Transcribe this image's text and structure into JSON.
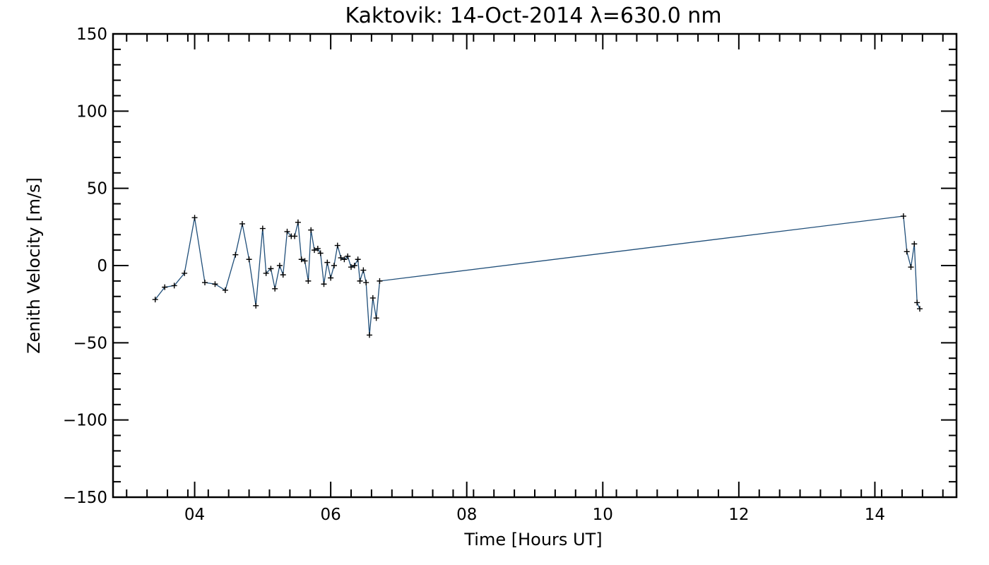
{
  "chart_data": {
    "type": "line",
    "title": "Kaktovik: 14-Oct-2014 λ=630.0 nm",
    "xlabel": "Time [Hours UT]",
    "ylabel": "Zenith Velocity [m/s]",
    "xlim": [
      2.8,
      15.2
    ],
    "ylim": [
      -150,
      150
    ],
    "xticks": [
      4,
      6,
      8,
      10,
      12,
      14
    ],
    "xtick_labels": [
      "04",
      "06",
      "08",
      "10",
      "12",
      "14"
    ],
    "yticks": [
      -150,
      -100,
      -50,
      0,
      50,
      100,
      150
    ],
    "ytick_labels": [
      "−150",
      "−100",
      "−50",
      "0",
      "50",
      "100",
      "150"
    ],
    "grid": false,
    "line_color": "#1f4e79",
    "marker": "+",
    "series": [
      {
        "x": [
          3.42,
          3.56,
          3.7,
          3.85,
          4.0,
          4.15,
          4.3,
          4.45,
          4.6,
          4.7,
          4.8,
          4.9,
          5.0,
          5.05,
          5.12,
          5.18,
          5.25,
          5.3,
          5.36,
          5.42,
          5.47,
          5.52,
          5.57,
          5.62,
          5.67,
          5.71,
          5.76,
          5.81,
          5.85,
          5.9,
          5.95,
          6.0,
          6.05,
          6.1,
          6.15,
          6.2,
          6.25,
          6.3,
          6.35,
          6.4,
          6.43,
          6.48,
          6.52,
          6.57,
          6.62,
          6.67,
          6.72,
          14.42,
          14.47,
          14.53,
          14.58,
          14.62,
          14.66
        ],
        "y": [
          -22,
          -14,
          -13,
          -5,
          31,
          -11,
          -12,
          -16,
          7,
          27,
          4,
          -26,
          24,
          -5,
          -2,
          -15,
          0,
          -6,
          22,
          19,
          19,
          28,
          4,
          3,
          -10,
          23,
          10,
          11,
          8,
          -12,
          2,
          -8,
          0,
          13,
          5,
          4,
          6,
          -1,
          0,
          4,
          -10,
          -3,
          -11,
          -45,
          -21,
          -34,
          -10,
          32,
          9,
          -1,
          14,
          -24,
          -28
        ]
      }
    ]
  }
}
